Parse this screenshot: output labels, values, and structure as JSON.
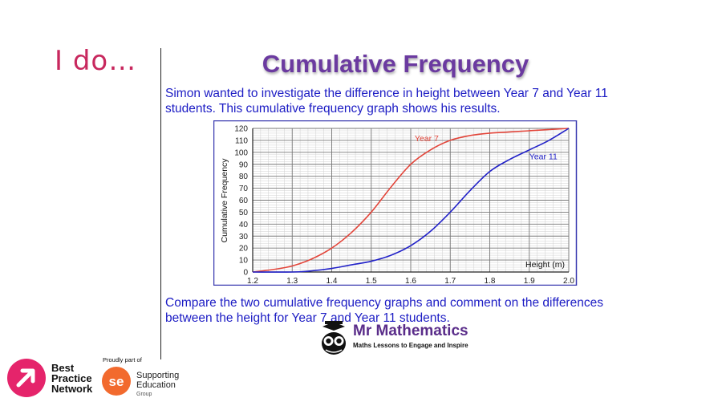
{
  "slide": {
    "heading": "I do…",
    "title": "Cumulative Frequency",
    "intro": "Simon wanted to investigate the difference in height between Year 7 and Year 11 students.  This cumulative frequency graph shows his results.",
    "question": "Compare the two cumulative frequency graphs and comment on the differences between the height for Year 7 and Year 11 students."
  },
  "branding": {
    "mr_mathematics": "Mr Mathematics",
    "mr_mathematics_tagline": "Maths Lessons to Engage and Inspire",
    "bpn_line1": "Best",
    "bpn_line2": "Practice",
    "bpn_line3": "Network",
    "proudly": "Proudly part of",
    "seg_line1": "Supporting",
    "seg_line2": "Education",
    "seg_line3": "Group",
    "seg_mark": "se",
    "bpn_color": "#e5246b",
    "seg_color": "#f26a2e"
  },
  "chart_data": {
    "type": "line",
    "xlabel": "Height (m)",
    "ylabel": "Cumulative Frequency",
    "xlim": [
      1.2,
      2.0
    ],
    "ylim": [
      0,
      120
    ],
    "x_ticks": [
      "1.2",
      "1.3",
      "1.4",
      "1.5",
      "1.6",
      "1.7",
      "1.8",
      "1.9",
      "2.0"
    ],
    "y_ticks": [
      "0",
      "10",
      "20",
      "30",
      "40",
      "50",
      "60",
      "70",
      "80",
      "90",
      "100",
      "110",
      "120"
    ],
    "grid": true,
    "series": [
      {
        "name": "Year 7",
        "color": "#e2453a",
        "x": [
          1.2,
          1.25,
          1.3,
          1.35,
          1.4,
          1.45,
          1.5,
          1.55,
          1.6,
          1.65,
          1.7,
          1.75,
          1.8,
          1.85,
          1.9,
          1.95,
          2.0
        ],
        "y": [
          0,
          2,
          5,
          11,
          20,
          33,
          50,
          71,
          90,
          102,
          110,
          114,
          116,
          117,
          118,
          119,
          120
        ]
      },
      {
        "name": "Year 11",
        "color": "#2222c8",
        "x": [
          1.2,
          1.3,
          1.35,
          1.4,
          1.45,
          1.5,
          1.55,
          1.6,
          1.65,
          1.7,
          1.75,
          1.8,
          1.85,
          1.9,
          1.95,
          2.0
        ],
        "y": [
          0,
          0,
          1,
          3,
          6,
          9,
          14,
          22,
          34,
          50,
          68,
          84,
          94,
          102,
          110,
          120
        ]
      }
    ]
  }
}
